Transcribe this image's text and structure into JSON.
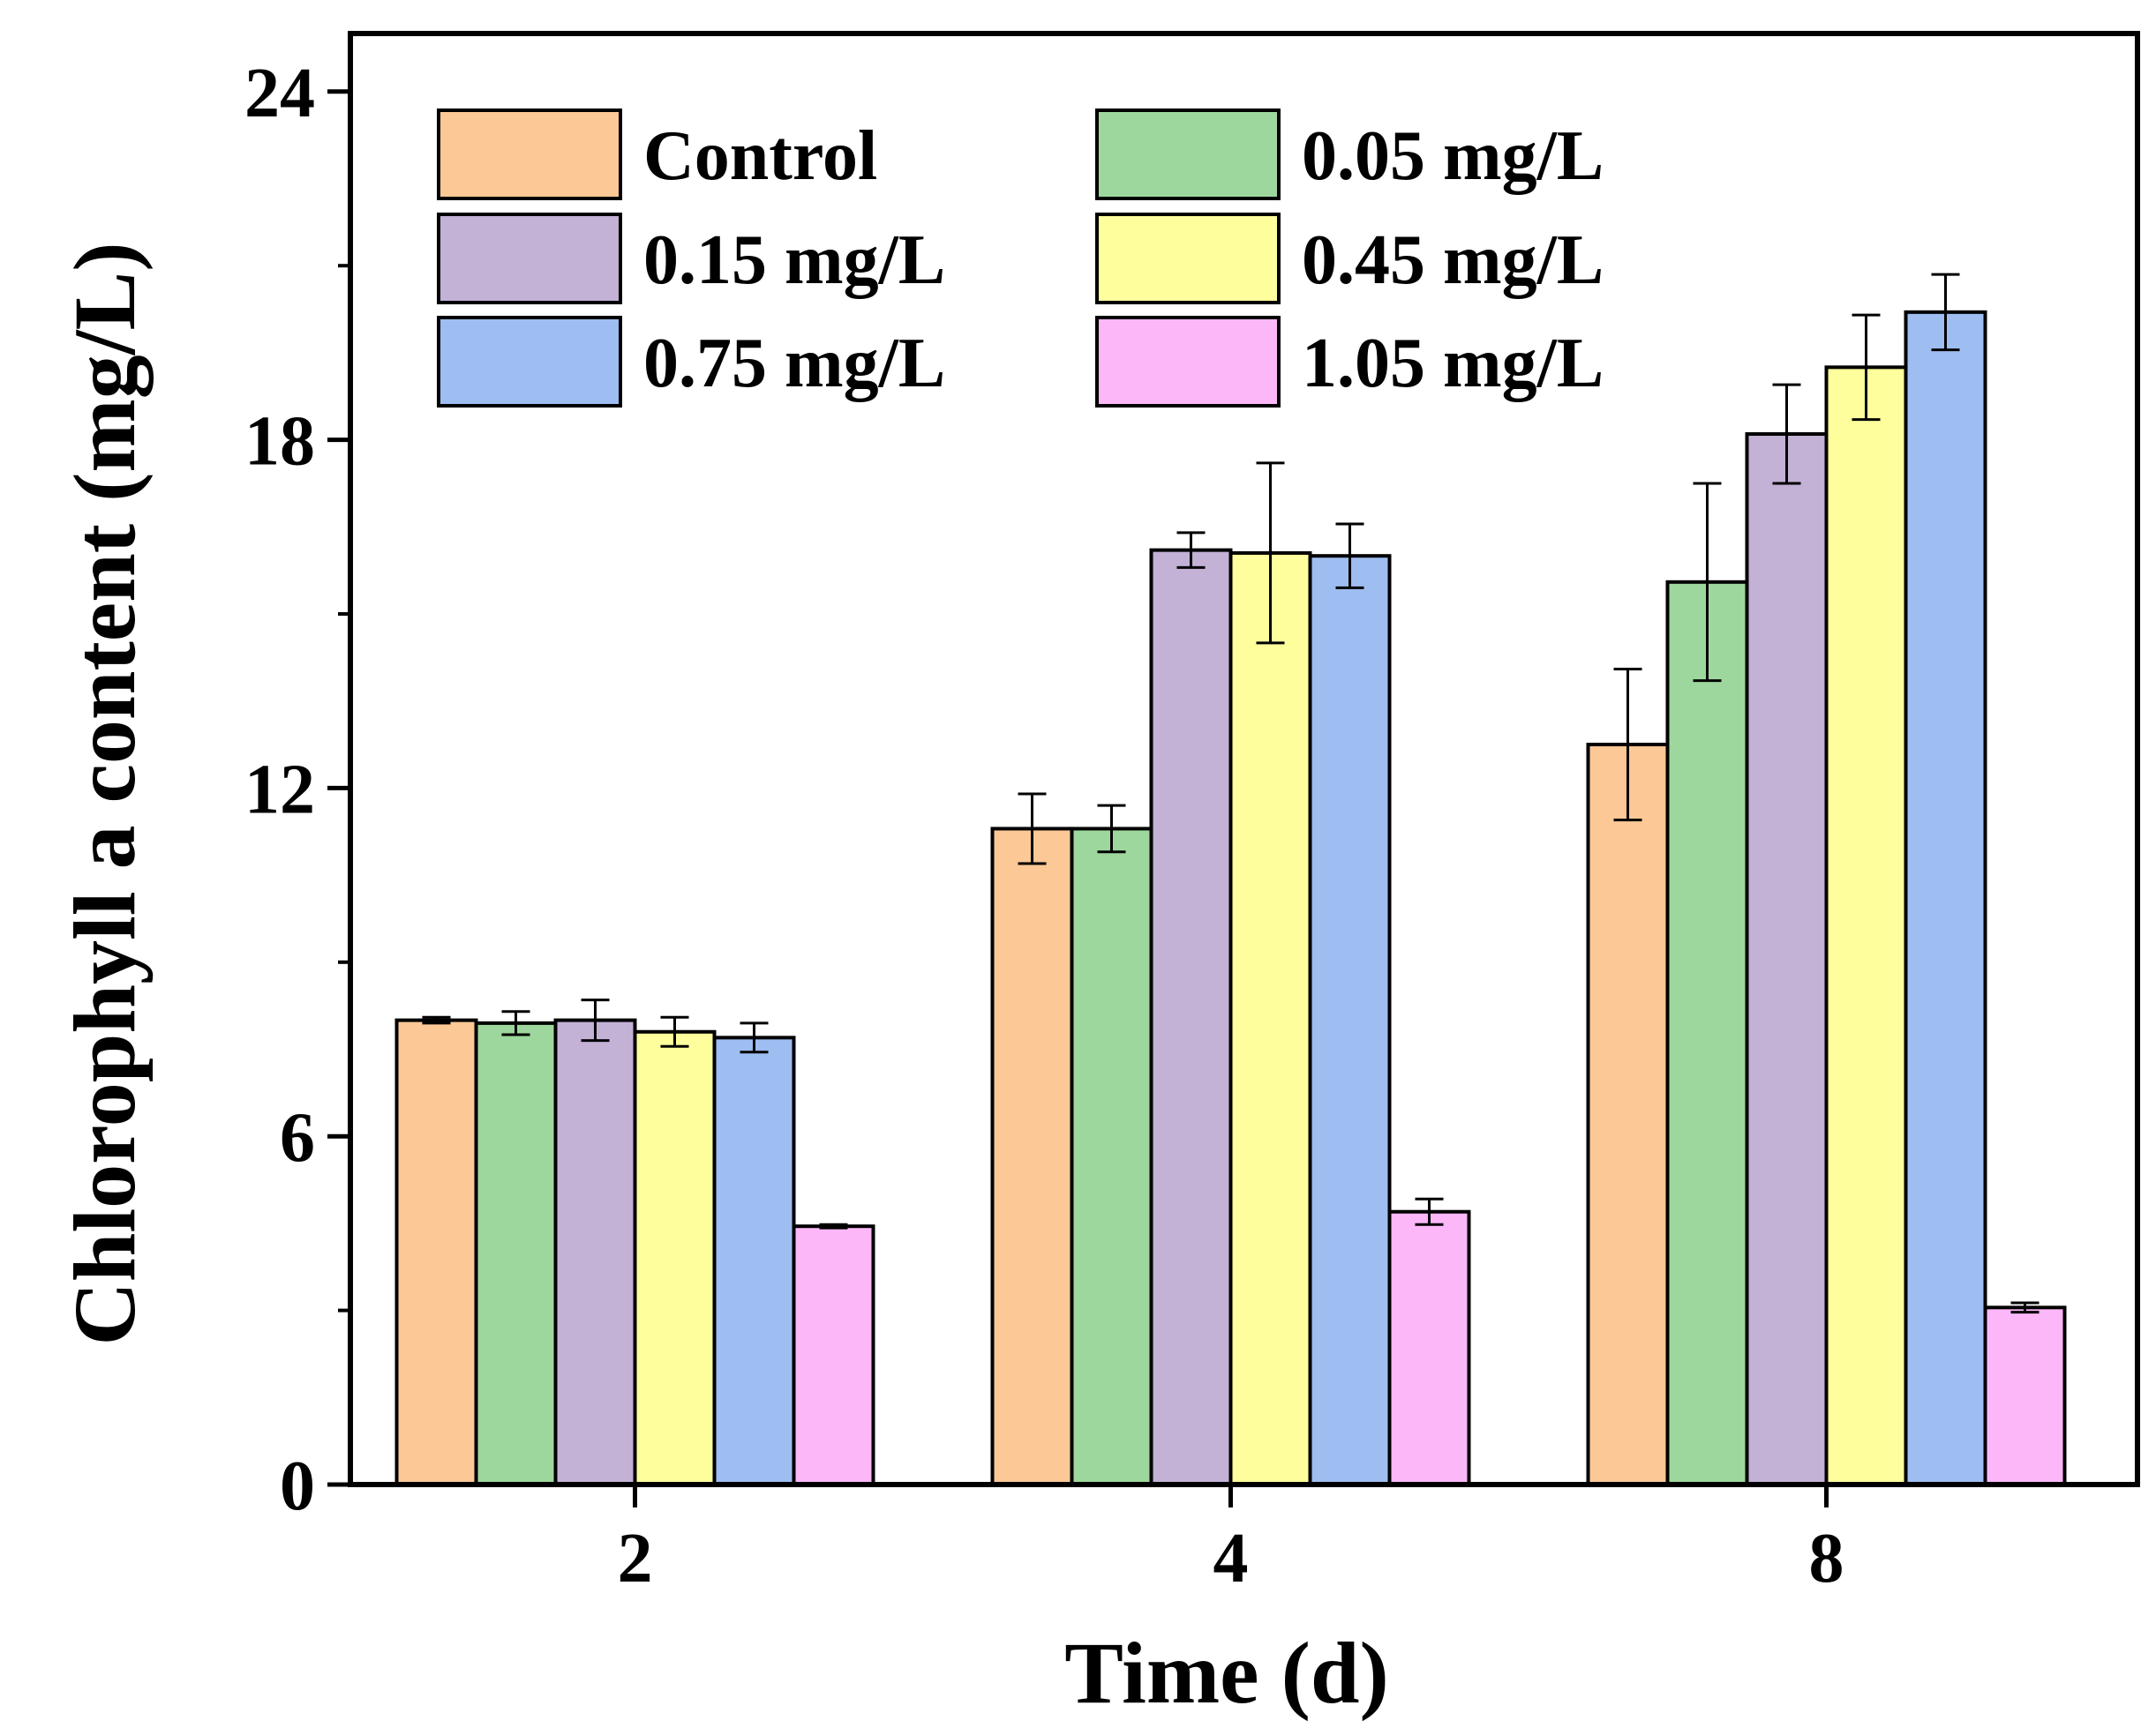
{
  "chart_data": {
    "type": "bar",
    "title": "",
    "xlabel": "Time (d)",
    "ylabel": "Chlorophyll a content (mg/L)",
    "categories": [
      "2",
      "4",
      "8"
    ],
    "ylim": [
      0,
      25
    ],
    "yticks": [
      0,
      6,
      12,
      18,
      24
    ],
    "ytick_labels": [
      "0",
      "6",
      "12",
      "18",
      "24"
    ],
    "legend_position": "top-left",
    "series": [
      {
        "name": "Control",
        "color": "#FBC896",
        "values": [
          8.0,
          11.3,
          12.75
        ],
        "errors": [
          0.05,
          0.6,
          1.3
        ]
      },
      {
        "name": "0.05 mg/L",
        "color": "#9ED79D",
        "values": [
          7.95,
          11.3,
          15.55
        ],
        "errors": [
          0.2,
          0.4,
          1.7
        ]
      },
      {
        "name": "0.15 mg/L",
        "color": "#C3B1D6",
        "values": [
          8.0,
          16.1,
          18.1
        ],
        "errors": [
          0.35,
          0.3,
          0.85
        ]
      },
      {
        "name": "0.45 mg/L",
        "color": "#FEFE9C",
        "values": [
          7.8,
          16.05,
          19.25
        ],
        "errors": [
          0.25,
          1.55,
          0.9
        ]
      },
      {
        "name": "0.75 mg/L",
        "color": "#9EBDF1",
        "values": [
          7.7,
          16.0,
          20.2
        ],
        "errors": [
          0.25,
          0.55,
          0.65
        ]
      },
      {
        "name": "1.05 mg/L",
        "color": "#FCB7F9",
        "values": [
          4.45,
          4.7,
          3.05
        ],
        "errors": [
          0.03,
          0.22,
          0.08
        ]
      }
    ]
  }
}
